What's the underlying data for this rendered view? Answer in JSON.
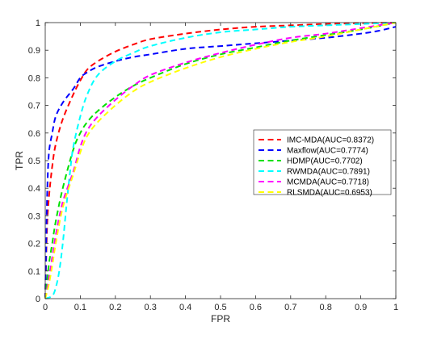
{
  "chart_data": {
    "type": "line",
    "title": "",
    "xlabel": "FPR",
    "ylabel": "TPR",
    "xlim": [
      0,
      1
    ],
    "ylim": [
      0,
      1
    ],
    "xticks": [
      "0",
      "0.1",
      "0.2",
      "0.3",
      "0.4",
      "0.5",
      "0.6",
      "0.7",
      "0.8",
      "0.9",
      "1"
    ],
    "yticks": [
      "0",
      "0.1",
      "0.2",
      "0.3",
      "0.4",
      "0.5",
      "0.6",
      "0.7",
      "0.8",
      "0.9",
      "1"
    ],
    "grid": false,
    "legend_position": "center-right",
    "line_style": "dashed",
    "series": [
      {
        "name": "IMC-MDA(AUC=0.8372)",
        "color": "#ff0000",
        "x": [
          0,
          0.005,
          0.01,
          0.02,
          0.03,
          0.05,
          0.08,
          0.1,
          0.12,
          0.15,
          0.2,
          0.25,
          0.3,
          0.4,
          0.5,
          0.6,
          0.7,
          0.8,
          0.9,
          1.0
        ],
        "y": [
          0,
          0.25,
          0.36,
          0.48,
          0.56,
          0.65,
          0.74,
          0.79,
          0.83,
          0.86,
          0.895,
          0.92,
          0.94,
          0.96,
          0.975,
          0.985,
          0.99,
          0.995,
          0.998,
          1.0
        ]
      },
      {
        "name": "Maxflow(AUC=0.7774)",
        "color": "#0000ff",
        "x": [
          0,
          0.002,
          0.005,
          0.01,
          0.02,
          0.03,
          0.05,
          0.08,
          0.1,
          0.12,
          0.15,
          0.2,
          0.25,
          0.3,
          0.4,
          0.5,
          0.6,
          0.7,
          0.8,
          0.9,
          0.95,
          1.0
        ],
        "y": [
          0,
          0.14,
          0.35,
          0.52,
          0.6,
          0.66,
          0.71,
          0.76,
          0.8,
          0.82,
          0.84,
          0.86,
          0.875,
          0.885,
          0.905,
          0.915,
          0.925,
          0.935,
          0.945,
          0.96,
          0.97,
          0.985
        ]
      },
      {
        "name": "HDMP(AUC=0.7702)",
        "color": "#00e000",
        "x": [
          0,
          0.01,
          0.02,
          0.03,
          0.05,
          0.08,
          0.1,
          0.12,
          0.15,
          0.2,
          0.25,
          0.3,
          0.4,
          0.5,
          0.6,
          0.7,
          0.8,
          0.9,
          1.0
        ],
        "y": [
          0,
          0.12,
          0.2,
          0.28,
          0.4,
          0.54,
          0.6,
          0.64,
          0.68,
          0.73,
          0.77,
          0.8,
          0.85,
          0.885,
          0.91,
          0.935,
          0.955,
          0.975,
          1.0
        ]
      },
      {
        "name": "RWMDA(AUC=0.7891)",
        "color": "#00ffff",
        "x": [
          0,
          0.02,
          0.03,
          0.04,
          0.05,
          0.06,
          0.07,
          0.08,
          0.1,
          0.12,
          0.15,
          0.2,
          0.25,
          0.3,
          0.4,
          0.5,
          0.6,
          0.7,
          0.8,
          0.9,
          1.0
        ],
        "y": [
          0,
          0.01,
          0.04,
          0.1,
          0.2,
          0.33,
          0.45,
          0.55,
          0.66,
          0.74,
          0.81,
          0.86,
          0.89,
          0.915,
          0.945,
          0.965,
          0.975,
          0.985,
          0.99,
          0.995,
          1.0
        ]
      },
      {
        "name": "MCMDA(AUC=0.7718)",
        "color": "#ff00ff",
        "x": [
          0,
          0.01,
          0.02,
          0.03,
          0.05,
          0.08,
          0.1,
          0.12,
          0.15,
          0.2,
          0.25,
          0.3,
          0.4,
          0.5,
          0.6,
          0.7,
          0.8,
          0.9,
          1.0
        ],
        "y": [
          0,
          0.07,
          0.15,
          0.23,
          0.35,
          0.46,
          0.55,
          0.61,
          0.66,
          0.72,
          0.77,
          0.81,
          0.855,
          0.89,
          0.92,
          0.945,
          0.96,
          0.98,
          1.0
        ]
      },
      {
        "name": "RLSMDA(AUC=0.6953)",
        "color": "#ffff00",
        "x": [
          0,
          0.01,
          0.02,
          0.03,
          0.05,
          0.08,
          0.1,
          0.12,
          0.15,
          0.2,
          0.25,
          0.3,
          0.4,
          0.5,
          0.6,
          0.7,
          0.8,
          0.9,
          1.0
        ],
        "y": [
          0,
          0.05,
          0.12,
          0.2,
          0.33,
          0.45,
          0.53,
          0.59,
          0.64,
          0.7,
          0.75,
          0.785,
          0.835,
          0.875,
          0.905,
          0.93,
          0.95,
          0.975,
          1.0
        ]
      }
    ]
  }
}
